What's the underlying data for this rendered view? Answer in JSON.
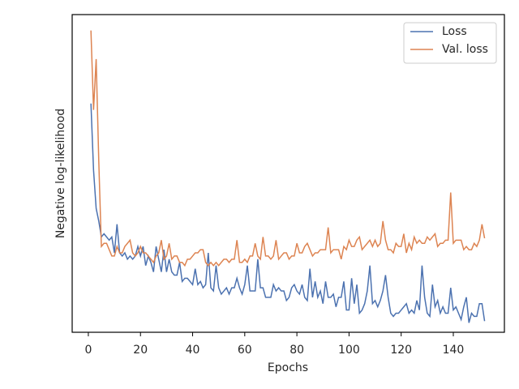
{
  "chart_data": {
    "type": "line",
    "xlabel": "Epochs",
    "ylabel": "Negative log-likelihood",
    "x": [
      1,
      2,
      3,
      4,
      5,
      6,
      7,
      8,
      9,
      10,
      11,
      12,
      13,
      14,
      15,
      16,
      17,
      18,
      19,
      20,
      21,
      22,
      23,
      24,
      25,
      26,
      27,
      28,
      29,
      30,
      31,
      32,
      33,
      34,
      35,
      36,
      37,
      38,
      39,
      40,
      41,
      42,
      43,
      44,
      45,
      46,
      47,
      48,
      49,
      50,
      51,
      52,
      53,
      54,
      55,
      56,
      57,
      58,
      59,
      60,
      61,
      62,
      63,
      64,
      65,
      66,
      67,
      68,
      69,
      70,
      71,
      72,
      73,
      74,
      75,
      76,
      77,
      78,
      79,
      80,
      81,
      82,
      83,
      84,
      85,
      86,
      87,
      88,
      89,
      90,
      91,
      92,
      93,
      94,
      95,
      96,
      97,
      98,
      99,
      100,
      101,
      102,
      103,
      104,
      105,
      106,
      107,
      108,
      109,
      110,
      111,
      112,
      113,
      114,
      115,
      116,
      117,
      118,
      119,
      120,
      121,
      122,
      123,
      124,
      125,
      126,
      127,
      128,
      129,
      130,
      131,
      132,
      133,
      134,
      135,
      136,
      137,
      138,
      139,
      140,
      141,
      142,
      143,
      144,
      145,
      146,
      147,
      148,
      149,
      150,
      151,
      152
    ],
    "series": [
      {
        "name": "Loss",
        "color": "#4c72b0",
        "values": [
          72,
          51,
          39,
          35,
          30,
          31,
          30,
          29,
          30,
          25,
          34,
          25,
          24,
          25,
          23,
          24,
          23,
          24,
          27,
          24,
          27,
          21,
          24,
          22,
          19,
          27,
          23,
          19,
          26,
          19,
          23,
          19,
          18,
          18,
          22,
          16,
          17,
          17,
          16,
          15,
          20,
          15,
          16,
          14,
          15,
          25,
          14,
          13,
          21,
          14,
          12,
          13,
          14,
          12,
          14,
          14,
          17,
          14,
          12,
          15,
          21,
          13,
          13,
          13,
          23,
          14,
          14,
          11,
          11,
          11,
          15,
          13,
          14,
          13,
          13,
          10,
          11,
          14,
          15,
          13,
          12,
          15,
          11,
          10,
          20,
          11,
          16,
          11,
          13,
          9,
          16,
          11,
          11,
          12,
          8,
          11,
          11,
          16,
          7,
          7,
          17,
          9,
          15,
          6,
          7,
          9,
          13,
          21,
          9,
          10,
          8,
          10,
          13,
          18,
          11,
          6,
          5,
          6,
          6,
          7,
          8,
          9,
          6,
          7,
          6,
          10,
          7,
          21,
          11,
          6,
          5,
          15,
          8,
          10,
          6,
          8,
          6,
          6,
          14,
          7,
          8,
          6,
          4,
          8,
          11,
          3,
          6,
          5,
          5,
          9,
          9,
          3.5
        ]
      },
      {
        "name": "Val. loss",
        "color": "#dd8452",
        "values": [
          95,
          70,
          86,
          54,
          27,
          28,
          28,
          26,
          24,
          24,
          27,
          25,
          25,
          27,
          28,
          29,
          25,
          24,
          25,
          27,
          25,
          25,
          24,
          23,
          22,
          24,
          25,
          29,
          23,
          24,
          28,
          23,
          24,
          24,
          22,
          22,
          21,
          23,
          23,
          24,
          25,
          25,
          26,
          26,
          22,
          21,
          22,
          21,
          22,
          21,
          22,
          23,
          23,
          22,
          23,
          23,
          29,
          22,
          22,
          23,
          22,
          24,
          24,
          28,
          24,
          23,
          30,
          24,
          24,
          23,
          24,
          29,
          23,
          24,
          25,
          25,
          23,
          24,
          24,
          28,
          25,
          25,
          27,
          28,
          26,
          24,
          25,
          25,
          26,
          26,
          26,
          33,
          25,
          26,
          26,
          26,
          23,
          27,
          26,
          29,
          27,
          27,
          29,
          30,
          26,
          27,
          28,
          29,
          27,
          29,
          27,
          28,
          35,
          29,
          26,
          26,
          25,
          28,
          27,
          27,
          31,
          25,
          28,
          26,
          30,
          28,
          29,
          28,
          28,
          30,
          29,
          30,
          31,
          27,
          28,
          28,
          29,
          29,
          44,
          28,
          29,
          29,
          29,
          26,
          27,
          26,
          26,
          28,
          27,
          29,
          34,
          29.6
        ]
      }
    ],
    "xlim": [
      -6.2,
      159.6
    ],
    "xticks": [
      0,
      20,
      40,
      60,
      80,
      100,
      120,
      140
    ],
    "ylim": [
      0,
      100
    ],
    "legend": "upper right"
  }
}
